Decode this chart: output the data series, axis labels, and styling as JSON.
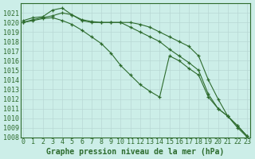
{
  "title": "Graphe pression niveau de la mer (hPa)",
  "bg_color": "#cceee8",
  "grid_color": "#b8d8d4",
  "line_color": "#2d6b2d",
  "x_values": [
    0,
    1,
    2,
    3,
    4,
    5,
    6,
    7,
    8,
    9,
    10,
    11,
    12,
    13,
    14,
    15,
    16,
    17,
    18,
    19,
    20,
    21,
    22,
    23
  ],
  "line1": [
    1020.0,
    1020.3,
    1020.5,
    1020.7,
    1021.0,
    1020.8,
    1020.3,
    1020.1,
    1020.0,
    1020.0,
    1020.0,
    1020.0,
    1019.8,
    1019.5,
    1019.0,
    1018.5,
    1018.0,
    1017.5,
    1016.5,
    1014.0,
    1012.0,
    1010.2,
    1009.2,
    1008.1
  ],
  "line2": [
    1020.2,
    1020.5,
    1020.6,
    1021.3,
    1021.5,
    1020.8,
    1020.2,
    1020.0,
    1020.0,
    1020.0,
    1020.0,
    1019.5,
    1019.0,
    1018.5,
    1018.0,
    1017.2,
    1016.5,
    1015.8,
    1015.0,
    1012.5,
    1011.0,
    1010.2,
    1009.2,
    1008.1
  ],
  "line3": [
    1020.0,
    1020.2,
    1020.4,
    1020.5,
    1020.2,
    1019.8,
    1019.2,
    1018.5,
    1017.8,
    1016.8,
    1015.5,
    1014.5,
    1013.5,
    1012.8,
    1012.2,
    1016.5,
    1016.0,
    1015.2,
    1014.5,
    1012.2,
    1011.0,
    1010.2,
    1009.0,
    1008.0
  ],
  "ylim": [
    1008,
    1022
  ],
  "yticks": [
    1008,
    1009,
    1010,
    1011,
    1012,
    1013,
    1014,
    1015,
    1016,
    1017,
    1018,
    1019,
    1020,
    1021
  ],
  "ylabel_fontsize": 6,
  "xlabel_fontsize": 6,
  "title_fontsize": 7
}
